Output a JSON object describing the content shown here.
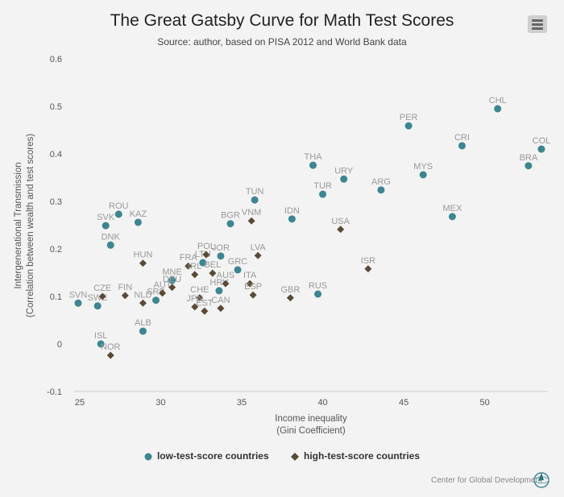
{
  "chart_data": {
    "type": "scatter",
    "title": "The Great Gatsby Curve for Math Test Scores",
    "subtitle": "Source: author, based on PISA 2012 and World Bank data",
    "xlabel": [
      "Income inequality",
      "(Gini Coefficient)"
    ],
    "ylabel": [
      "Intergenerational Transmission",
      "(Correlation between wealth and test scores)"
    ],
    "xlim": [
      24.65,
      53.9
    ],
    "ylim": [
      -0.1,
      0.6
    ],
    "xticks": [
      25,
      30,
      35,
      40,
      45,
      50
    ],
    "yticks": [
      -0.1,
      0,
      0.1,
      0.2,
      0.3,
      0.4,
      0.5,
      0.6
    ],
    "grid": false,
    "legend_placement": "bottom",
    "series": [
      {
        "name": "low-test-score countries",
        "marker": "circle",
        "color": "#3d8591",
        "points": [
          {
            "label": "SVN",
            "x": 24.9,
            "y": 0.086
          },
          {
            "label": "SWE",
            "x": 26.1,
            "y": 0.08
          },
          {
            "label": "ISL",
            "x": 26.3,
            "y": 0.0
          },
          {
            "label": "SVK",
            "x": 26.6,
            "y": 0.249
          },
          {
            "label": "ROU",
            "x": 27.4,
            "y": 0.273
          },
          {
            "label": "DNK",
            "x": 26.9,
            "y": 0.208
          },
          {
            "label": "KAZ",
            "x": 28.6,
            "y": 0.256
          },
          {
            "label": "ALB",
            "x": 28.9,
            "y": 0.027
          },
          {
            "label": "SRB",
            "x": 29.7,
            "y": 0.092
          },
          {
            "label": "MNE",
            "x": 30.7,
            "y": 0.134
          },
          {
            "label": "LTU",
            "x": 32.6,
            "y": 0.171
          },
          {
            "label": "JOR",
            "x": 33.7,
            "y": 0.185
          },
          {
            "label": "BGR",
            "x": 34.3,
            "y": 0.253
          },
          {
            "label": "TUN",
            "x": 35.8,
            "y": 0.303
          },
          {
            "label": "GRC",
            "x": 34.75,
            "y": 0.156
          },
          {
            "label": "HRV",
            "x": 33.6,
            "y": 0.112
          },
          {
            "label": "IDN",
            "x": 38.1,
            "y": 0.263
          },
          {
            "label": "THA",
            "x": 39.4,
            "y": 0.376
          },
          {
            "label": "TUR",
            "x": 40.0,
            "y": 0.315
          },
          {
            "label": "URY",
            "x": 41.3,
            "y": 0.347
          },
          {
            "label": "ARG",
            "x": 43.6,
            "y": 0.324
          },
          {
            "label": "RUS",
            "x": 39.7,
            "y": 0.105
          },
          {
            "label": "PER",
            "x": 45.3,
            "y": 0.459
          },
          {
            "label": "MYS",
            "x": 46.2,
            "y": 0.356
          },
          {
            "label": "MEX",
            "x": 48.0,
            "y": 0.268
          },
          {
            "label": "CRI",
            "x": 48.6,
            "y": 0.417
          },
          {
            "label": "CHL",
            "x": 50.8,
            "y": 0.495
          },
          {
            "label": "BRA",
            "x": 52.7,
            "y": 0.375
          },
          {
            "label": "COL",
            "x": 53.5,
            "y": 0.41
          }
        ]
      },
      {
        "name": "high-test-score countries",
        "marker": "diamond",
        "color": "#5a4a35",
        "points": [
          {
            "label": "CZE",
            "x": 26.4,
            "y": 0.1
          },
          {
            "label": "NOR",
            "x": 26.9,
            "y": -0.024
          },
          {
            "label": "FIN",
            "x": 27.8,
            "y": 0.102
          },
          {
            "label": "HUN",
            "x": 28.9,
            "y": 0.17
          },
          {
            "label": "NLD",
            "x": 28.9,
            "y": 0.086
          },
          {
            "label": "AUT",
            "x": 30.1,
            "y": 0.107
          },
          {
            "label": "DEU",
            "x": 30.7,
            "y": 0.119
          },
          {
            "label": "FRA",
            "x": 31.7,
            "y": 0.164
          },
          {
            "label": "IRL",
            "x": 32.1,
            "y": 0.146
          },
          {
            "label": "POL",
            "x": 32.8,
            "y": 0.188
          },
          {
            "label": "BEL",
            "x": 33.2,
            "y": 0.149
          },
          {
            "label": "AUS",
            "x": 34.0,
            "y": 0.127
          },
          {
            "label": "CHE",
            "x": 32.4,
            "y": 0.097
          },
          {
            "label": "JPN",
            "x": 32.1,
            "y": 0.078
          },
          {
            "label": "EST",
            "x": 32.7,
            "y": 0.069
          },
          {
            "label": "CAN",
            "x": 33.7,
            "y": 0.075
          },
          {
            "label": "ITA",
            "x": 35.5,
            "y": 0.127
          },
          {
            "label": "ESP",
            "x": 35.7,
            "y": 0.103
          },
          {
            "label": "LVA",
            "x": 36.0,
            "y": 0.186
          },
          {
            "label": "VNM",
            "x": 35.6,
            "y": 0.259
          },
          {
            "label": "GBR",
            "x": 38.0,
            "y": 0.097
          },
          {
            "label": "USA",
            "x": 41.1,
            "y": 0.241
          },
          {
            "label": "ISR",
            "x": 42.8,
            "y": 0.158
          }
        ]
      }
    ]
  },
  "menu_icon": "hamburger-menu-icon",
  "credit": "Center for Global Development",
  "credit_logo": "globe-logo-icon"
}
